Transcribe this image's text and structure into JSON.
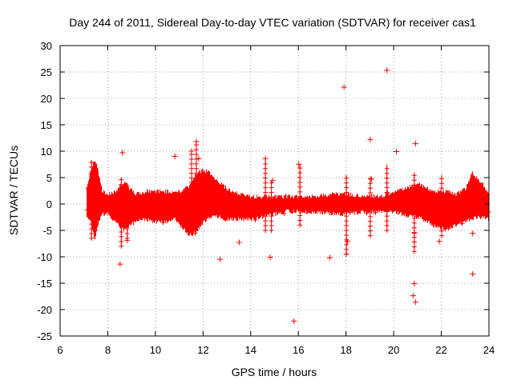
{
  "chart_data": {
    "type": "scatter",
    "title": "Day 244 of 2011, Sidereal Day-to-day VTEC variation (SDTVAR) for receiver cas1",
    "xlabel": "GPS time / hours",
    "ylabel": "SDTVAR / TECUs",
    "xlim": [
      6,
      24
    ],
    "ylim": [
      -25,
      30
    ],
    "grid": true,
    "marker": "+",
    "color": "#ff0000",
    "xticks": [
      "6",
      "8",
      "10",
      "12",
      "14",
      "16",
      "18",
      "20",
      "22",
      "24"
    ],
    "yticks": [
      "30",
      "25",
      "20",
      "15",
      "10",
      "5",
      "0",
      "-5",
      "-10",
      "-15",
      "-20",
      "-25"
    ],
    "dense_band": [
      [
        7.1,
        -2.0,
        2.5
      ],
      [
        7.3,
        -3.0,
        6.5
      ],
      [
        7.45,
        -6.5,
        8.0
      ],
      [
        7.6,
        -3.0,
        5.5
      ],
      [
        7.75,
        -1.5,
        2.0
      ],
      [
        8.0,
        -1.5,
        1.5
      ],
      [
        8.3,
        -3.0,
        2.0
      ],
      [
        8.5,
        -4.0,
        3.0
      ],
      [
        8.7,
        -4.5,
        3.5
      ],
      [
        8.9,
        -3.5,
        2.5
      ],
      [
        9.2,
        -3.0,
        1.5
      ],
      [
        9.6,
        -2.5,
        2.0
      ],
      [
        10.0,
        -3.0,
        2.0
      ],
      [
        10.4,
        -3.0,
        2.0
      ],
      [
        10.8,
        -2.5,
        2.0
      ],
      [
        11.1,
        -4.0,
        2.0
      ],
      [
        11.4,
        -5.5,
        3.0
      ],
      [
        11.7,
        -5.0,
        5.5
      ],
      [
        12.0,
        -3.0,
        6.0
      ],
      [
        12.3,
        -2.0,
        5.5
      ],
      [
        12.6,
        -2.0,
        4.0
      ],
      [
        13.0,
        -2.5,
        2.5
      ],
      [
        13.5,
        -2.5,
        1.5
      ],
      [
        14.0,
        -2.5,
        1.0
      ],
      [
        14.5,
        -2.0,
        1.0
      ],
      [
        15.0,
        -1.5,
        1.0
      ],
      [
        15.5,
        -1.0,
        1.0
      ],
      [
        16.0,
        -1.0,
        1.0
      ],
      [
        16.5,
        -1.2,
        1.0
      ],
      [
        17.0,
        -1.2,
        1.2
      ],
      [
        17.5,
        -1.5,
        1.5
      ],
      [
        18.0,
        -1.5,
        1.5
      ],
      [
        18.5,
        -1.2,
        1.2
      ],
      [
        19.0,
        -1.2,
        1.2
      ],
      [
        19.5,
        -1.0,
        1.0
      ],
      [
        20.0,
        -1.0,
        2.0
      ],
      [
        20.3,
        -1.5,
        2.5
      ],
      [
        20.7,
        -2.0,
        3.0
      ],
      [
        21.0,
        -2.0,
        3.5
      ],
      [
        21.4,
        -3.0,
        2.5
      ],
      [
        21.8,
        -4.0,
        2.0
      ],
      [
        22.2,
        -4.5,
        2.0
      ],
      [
        22.6,
        -3.5,
        1.5
      ],
      [
        23.0,
        -3.0,
        2.5
      ],
      [
        23.3,
        -2.5,
        5.5
      ],
      [
        23.6,
        -2.0,
        4.0
      ],
      [
        23.95,
        -2.5,
        2.0
      ]
    ],
    "spikes": [
      [
        7.3,
        -6.5,
        8.0
      ],
      [
        7.45,
        -5.0,
        7.5
      ],
      [
        8.55,
        -8.0,
        5.0
      ],
      [
        8.8,
        -6.5,
        4.0
      ],
      [
        11.5,
        -5.0,
        10.0
      ],
      [
        11.7,
        -5.0,
        12.0
      ],
      [
        14.6,
        -5.0,
        8.5
      ],
      [
        14.85,
        -5.0,
        4.5
      ],
      [
        16.05,
        -4.0,
        7.5
      ],
      [
        18.0,
        -9.5,
        5.5
      ],
      [
        19.0,
        -6.0,
        5.0
      ],
      [
        19.7,
        -5.0,
        7.5
      ],
      [
        20.85,
        -9.0,
        6.0
      ],
      [
        22.0,
        -6.0,
        5.5
      ]
    ],
    "outliers": [
      [
        8.6,
        9.8
      ],
      [
        8.5,
        -11.3
      ],
      [
        8.8,
        -6.8
      ],
      [
        10.8,
        9.1
      ],
      [
        11.5,
        10.1
      ],
      [
        11.7,
        11.9
      ],
      [
        11.8,
        8.7
      ],
      [
        12.7,
        -10.4
      ],
      [
        13.5,
        -7.2
      ],
      [
        14.6,
        8.7
      ],
      [
        14.8,
        -10.0
      ],
      [
        14.9,
        4.5
      ],
      [
        15.8,
        -22.1
      ],
      [
        16.0,
        7.6
      ],
      [
        17.3,
        -10.1
      ],
      [
        17.9,
        22.2
      ],
      [
        18.0,
        -9.4
      ],
      [
        19.0,
        12.3
      ],
      [
        19.7,
        25.4
      ],
      [
        20.1,
        10.0
      ],
      [
        20.9,
        11.5
      ],
      [
        20.85,
        -15.0
      ],
      [
        20.8,
        -17.3
      ],
      [
        20.9,
        -18.5
      ],
      [
        20.85,
        -5.5
      ],
      [
        21.9,
        -7.0
      ],
      [
        23.3,
        -13.2
      ],
      [
        23.3,
        -5.5
      ],
      [
        19.05,
        4.8
      ],
      [
        18.05,
        -7.0
      ]
    ]
  }
}
